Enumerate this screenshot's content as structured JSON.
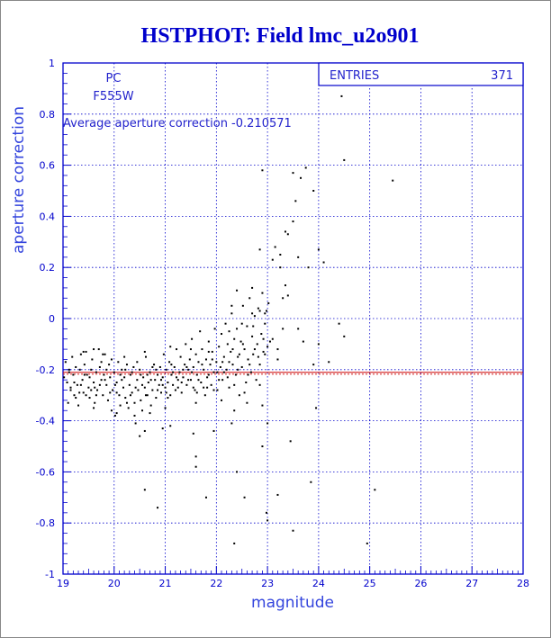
{
  "chart_data": {
    "type": "scatter",
    "title": "HSTPHOT: Field lmc_u2o901",
    "xlabel": "magnitude",
    "ylabel": "aperture correction",
    "xlim": [
      19,
      28
    ],
    "ylim": [
      -1,
      1
    ],
    "xticks": [
      "19",
      "20",
      "21",
      "22",
      "23",
      "24",
      "25",
      "26",
      "27",
      "28"
    ],
    "yticks": [
      "1",
      "0.8",
      "0.6",
      "0.4",
      "0.2",
      "0",
      "-0.2",
      "-0.4",
      "-0.6",
      "-0.8",
      "-1"
    ],
    "grid": true,
    "grid_color": "#0000cc",
    "axis_color": "#0000cc",
    "point_color": "#000000",
    "average_line": {
      "value": -0.210571,
      "color": "#cc0000"
    },
    "annotations": {
      "instrument": "PC",
      "filter": "F555W",
      "average_text": "Average aperture correction -0.210571"
    },
    "stats": {
      "label": "ENTRIES",
      "value": "371"
    },
    "points": [
      [
        19.05,
        -0.17
      ],
      [
        19.08,
        -0.25
      ],
      [
        19.1,
        -0.33
      ],
      [
        19.12,
        -0.21
      ],
      [
        19.15,
        -0.28
      ],
      [
        19.18,
        -0.15
      ],
      [
        19.2,
        -0.22
      ],
      [
        19.22,
        -0.3
      ],
      [
        19.25,
        -0.19
      ],
      [
        19.28,
        -0.26
      ],
      [
        19.3,
        -0.34
      ],
      [
        19.33,
        -0.2
      ],
      [
        19.35,
        -0.14
      ],
      [
        19.38,
        -0.24
      ],
      [
        19.4,
        -0.29
      ],
      [
        19.42,
        -0.18
      ],
      [
        19.45,
        -0.13
      ],
      [
        19.47,
        -0.22
      ],
      [
        19.5,
        -0.27
      ],
      [
        19.52,
        -0.31
      ],
      [
        19.55,
        -0.2
      ],
      [
        19.57,
        -0.16
      ],
      [
        19.6,
        -0.25
      ],
      [
        19.62,
        -0.33
      ],
      [
        19.65,
        -0.21
      ],
      [
        19.67,
        -0.28
      ],
      [
        19.7,
        -0.12
      ],
      [
        19.72,
        -0.19
      ],
      [
        19.75,
        -0.24
      ],
      [
        19.78,
        -0.3
      ],
      [
        19.8,
        -0.22
      ],
      [
        19.82,
        -0.14
      ],
      [
        19.85,
        -0.26
      ],
      [
        19.88,
        -0.32
      ],
      [
        19.9,
        -0.18
      ],
      [
        19.92,
        -0.23
      ],
      [
        19.95,
        -0.36
      ],
      [
        19.97,
        -0.28
      ],
      [
        20.0,
        -0.21
      ],
      [
        20.02,
        -0.38
      ],
      [
        20.05,
        -0.25
      ],
      [
        20.08,
        -0.17
      ],
      [
        20.1,
        -0.3
      ],
      [
        20.12,
        -0.34
      ],
      [
        20.15,
        -0.2
      ],
      [
        20.18,
        -0.27
      ],
      [
        20.2,
        -0.23
      ],
      [
        20.22,
        -0.31
      ],
      [
        20.25,
        -0.18
      ],
      [
        20.28,
        -0.35
      ],
      [
        20.3,
        -0.26
      ],
      [
        20.32,
        -0.22
      ],
      [
        20.35,
        -0.29
      ],
      [
        20.38,
        -0.19
      ],
      [
        20.4,
        -0.33
      ],
      [
        20.42,
        -0.41
      ],
      [
        20.45,
        -0.24
      ],
      [
        20.47,
        -0.28
      ],
      [
        20.5,
        -0.2
      ],
      [
        20.52,
        -0.32
      ],
      [
        20.55,
        -0.36
      ],
      [
        20.57,
        -0.23
      ],
      [
        20.6,
        -0.27
      ],
      [
        20.62,
        -0.15
      ],
      [
        20.65,
        -0.3
      ],
      [
        20.67,
        -0.25
      ],
      [
        20.7,
        -0.21
      ],
      [
        20.72,
        -0.34
      ],
      [
        20.75,
        -0.28
      ],
      [
        20.78,
        -0.18
      ],
      [
        20.8,
        -0.24
      ],
      [
        20.82,
        -0.31
      ],
      [
        20.85,
        -0.22
      ],
      [
        20.88,
        -0.26
      ],
      [
        20.9,
        -0.19
      ],
      [
        20.92,
        -0.29
      ],
      [
        20.95,
        -0.23
      ],
      [
        20.97,
        -0.14
      ],
      [
        21.0,
        -0.27
      ],
      [
        21.02,
        -0.2
      ],
      [
        21.05,
        -0.25
      ],
      [
        21.08,
        -0.17
      ],
      [
        21.1,
        -0.3
      ],
      [
        21.12,
        -0.22
      ],
      [
        21.15,
        -0.26
      ],
      [
        21.18,
        -0.19
      ],
      [
        21.2,
        -0.28
      ],
      [
        21.22,
        -0.12
      ],
      [
        21.25,
        -0.24
      ],
      [
        21.28,
        -0.21
      ],
      [
        21.3,
        -0.15
      ],
      [
        21.32,
        -0.29
      ],
      [
        21.35,
        -0.23
      ],
      [
        21.38,
        -0.18
      ],
      [
        21.4,
        -0.1
      ],
      [
        21.42,
        -0.26
      ],
      [
        21.45,
        -0.2
      ],
      [
        21.48,
        -0.16
      ],
      [
        21.5,
        -0.24
      ],
      [
        21.52,
        -0.08
      ],
      [
        21.55,
        -0.19
      ],
      [
        21.58,
        -0.28
      ],
      [
        21.6,
        -0.14
      ],
      [
        21.62,
        -0.22
      ],
      [
        21.65,
        -0.17
      ],
      [
        21.68,
        -0.05
      ],
      [
        21.7,
        -0.25
      ],
      [
        21.72,
        -0.12
      ],
      [
        21.75,
        -0.2
      ],
      [
        21.78,
        -0.3
      ],
      [
        21.8,
        -0.16
      ],
      [
        21.82,
        -0.23
      ],
      [
        21.85,
        -0.09
      ],
      [
        21.88,
        -0.18
      ],
      [
        21.9,
        -0.26
      ],
      [
        21.92,
        -0.13
      ],
      [
        21.95,
        -0.21
      ],
      [
        21.97,
        -0.04
      ],
      [
        22.0,
        -0.17
      ],
      [
        22.02,
        -0.28
      ],
      [
        22.05,
        -0.11
      ],
      [
        22.08,
        -0.19
      ],
      [
        22.1,
        -0.06
      ],
      [
        22.12,
        -0.24
      ],
      [
        22.15,
        -0.15
      ],
      [
        22.18,
        -0.02
      ],
      [
        22.2,
        -0.2
      ],
      [
        22.22,
        -0.1
      ],
      [
        22.25,
        -0.27
      ],
      [
        22.28,
        -0.13
      ],
      [
        22.3,
        0.02
      ],
      [
        22.32,
        -0.18
      ],
      [
        22.35,
        -0.08
      ],
      [
        22.38,
        -0.22
      ],
      [
        22.4,
        -0.04
      ],
      [
        22.42,
        -0.15
      ],
      [
        22.45,
        -0.3
      ],
      [
        22.48,
        -0.09
      ],
      [
        22.5,
        -0.19
      ],
      [
        22.52,
        0.05
      ],
      [
        22.55,
        -0.12
      ],
      [
        22.58,
        -0.25
      ],
      [
        22.6,
        -0.03
      ],
      [
        22.62,
        -0.16
      ],
      [
        22.65,
        0.08
      ],
      [
        22.68,
        -0.21
      ],
      [
        22.7,
        -0.07
      ],
      [
        22.72,
        -0.14
      ],
      [
        22.75,
        0.01
      ],
      [
        22.78,
        -0.24
      ],
      [
        22.8,
        -0.1
      ],
      [
        22.82,
        0.04
      ],
      [
        22.85,
        -0.18
      ],
      [
        22.88,
        -0.06
      ],
      [
        22.9,
        0.1
      ],
      [
        22.92,
        -0.13
      ],
      [
        22.95,
        -0.02
      ],
      [
        22.98,
        0.03
      ],
      [
        23.0,
        -0.11
      ],
      [
        23.02,
        0.06
      ],
      [
        19.15,
        -0.27
      ],
      [
        19.25,
        -0.31
      ],
      [
        19.35,
        -0.26
      ],
      [
        19.45,
        -0.3
      ],
      [
        19.55,
        -0.28
      ],
      [
        19.65,
        -0.3
      ],
      [
        19.75,
        -0.17
      ],
      [
        19.85,
        -0.2
      ],
      [
        19.95,
        -0.16
      ],
      [
        20.05,
        -0.29
      ],
      [
        20.15,
        -0.24
      ],
      [
        20.25,
        -0.33
      ],
      [
        20.35,
        -0.21
      ],
      [
        20.45,
        -0.17
      ],
      [
        20.55,
        -0.26
      ],
      [
        20.65,
        -0.22
      ],
      [
        20.75,
        -0.19
      ],
      [
        20.85,
        -0.28
      ],
      [
        20.95,
        -0.26
      ],
      [
        21.05,
        -0.31
      ],
      [
        21.15,
        -0.21
      ],
      [
        21.25,
        -0.27
      ],
      [
        21.35,
        -0.2
      ],
      [
        21.45,
        -0.24
      ],
      [
        21.55,
        -0.27
      ],
      [
        21.65,
        -0.24
      ],
      [
        21.75,
        -0.27
      ],
      [
        21.85,
        -0.22
      ],
      [
        21.95,
        -0.28
      ],
      [
        22.05,
        -0.24
      ],
      [
        22.15,
        -0.21
      ],
      [
        22.25,
        -0.17
      ],
      [
        22.35,
        -0.26
      ],
      [
        22.45,
        -0.14
      ],
      [
        22.55,
        -0.29
      ],
      [
        22.65,
        -0.18
      ],
      [
        22.75,
        -0.12
      ],
      [
        22.85,
        -0.26
      ],
      [
        22.95,
        -0.14
      ],
      [
        19.02,
        -0.23
      ],
      [
        19.12,
        -0.2
      ],
      [
        19.22,
        -0.25
      ],
      [
        19.32,
        -0.29
      ],
      [
        19.42,
        -0.22
      ],
      [
        19.52,
        -0.23
      ],
      [
        19.62,
        -0.27
      ],
      [
        19.72,
        -0.26
      ],
      [
        19.82,
        -0.24
      ],
      [
        19.92,
        -0.29
      ],
      [
        20.02,
        -0.26
      ],
      [
        20.12,
        -0.22
      ],
      [
        20.22,
        -0.2
      ],
      [
        20.32,
        -0.3
      ],
      [
        20.42,
        -0.27
      ],
      [
        20.52,
        -0.22
      ],
      [
        20.62,
        -0.3
      ],
      [
        20.72,
        -0.24
      ],
      [
        20.82,
        -0.2
      ],
      [
        20.92,
        -0.24
      ],
      [
        21.02,
        -0.29
      ],
      [
        21.12,
        -0.18
      ],
      [
        21.22,
        -0.23
      ],
      [
        21.32,
        -0.25
      ],
      [
        21.42,
        -0.19
      ],
      [
        21.52,
        -0.21
      ],
      [
        21.62,
        -0.29
      ],
      [
        21.72,
        -0.18
      ],
      [
        21.82,
        -0.27
      ],
      [
        21.92,
        -0.16
      ],
      [
        22.02,
        -0.21
      ],
      [
        22.12,
        -0.17
      ],
      [
        22.22,
        -0.23
      ],
      [
        22.32,
        -0.12
      ],
      [
        22.42,
        -0.2
      ],
      [
        22.52,
        -0.1
      ],
      [
        22.62,
        -0.22
      ],
      [
        22.72,
        -0.03
      ],
      [
        22.82,
        -0.15
      ],
      [
        22.92,
        -0.08
      ],
      [
        19.4,
        -0.13
      ],
      [
        19.6,
        -0.12
      ],
      [
        19.78,
        -0.14
      ],
      [
        20.2,
        -0.15
      ],
      [
        20.6,
        -0.13
      ],
      [
        21.1,
        -0.11
      ],
      [
        21.5,
        -0.12
      ],
      [
        21.85,
        -0.13
      ],
      [
        22.25,
        -0.05
      ],
      [
        22.5,
        -0.02
      ],
      [
        22.7,
        0.02
      ],
      [
        22.95,
        0.02
      ],
      [
        19.6,
        -0.35
      ],
      [
        20.05,
        -0.37
      ],
      [
        20.4,
        -0.38
      ],
      [
        20.7,
        -0.37
      ],
      [
        21.0,
        -0.35
      ],
      [
        21.6,
        -0.33
      ],
      [
        22.1,
        -0.32
      ],
      [
        22.35,
        -0.36
      ],
      [
        22.6,
        -0.33
      ],
      [
        22.9,
        -0.34
      ],
      [
        23.1,
        -0.08
      ],
      [
        23.2,
        -0.12
      ],
      [
        20.5,
        -0.46
      ],
      [
        20.6,
        -0.44
      ],
      [
        20.95,
        -0.43
      ],
      [
        21.1,
        -0.42
      ],
      [
        21.55,
        -0.45
      ],
      [
        21.95,
        -0.44
      ],
      [
        22.3,
        -0.41
      ],
      [
        22.9,
        -0.5
      ],
      [
        21.6,
        -0.54
      ],
      [
        21.6,
        -0.58
      ],
      [
        22.4,
        -0.6
      ],
      [
        23.45,
        -0.48
      ],
      [
        23.0,
        -0.41
      ],
      [
        23.05,
        -0.09
      ],
      [
        20.6,
        -0.67
      ],
      [
        21.8,
        -0.7
      ],
      [
        22.55,
        -0.7
      ],
      [
        23.2,
        -0.69
      ],
      [
        23.85,
        -0.64
      ],
      [
        20.85,
        -0.74
      ],
      [
        22.98,
        -0.76
      ],
      [
        23.0,
        -0.79
      ],
      [
        22.35,
        -0.88
      ],
      [
        23.5,
        -0.83
      ],
      [
        24.95,
        -0.88
      ],
      [
        25.1,
        -0.67
      ],
      [
        23.25,
        0.2
      ],
      [
        23.3,
        0.08
      ],
      [
        23.4,
        0.09
      ],
      [
        23.25,
        0.25
      ],
      [
        23.15,
        0.28
      ],
      [
        23.35,
        0.34
      ],
      [
        23.4,
        0.33
      ],
      [
        23.5,
        0.38
      ],
      [
        23.55,
        0.46
      ],
      [
        23.65,
        0.55
      ],
      [
        23.75,
        0.59
      ],
      [
        23.9,
        0.5
      ],
      [
        23.5,
        0.57
      ],
      [
        22.9,
        0.58
      ],
      [
        22.85,
        0.27
      ],
      [
        23.1,
        0.23
      ],
      [
        23.6,
        0.24
      ],
      [
        23.8,
        0.2
      ],
      [
        24.0,
        0.27
      ],
      [
        24.1,
        0.22
      ],
      [
        23.35,
        0.13
      ],
      [
        22.7,
        0.12
      ],
      [
        23.3,
        -0.04
      ],
      [
        23.7,
        -0.09
      ],
      [
        23.6,
        -0.04
      ],
      [
        24.0,
        -0.1
      ],
      [
        24.4,
        -0.02
      ],
      [
        24.5,
        -0.07
      ],
      [
        23.9,
        -0.18
      ],
      [
        24.2,
        -0.17
      ],
      [
        23.95,
        -0.35
      ],
      [
        23.2,
        -0.16
      ],
      [
        24.45,
        0.87
      ],
      [
        24.5,
        0.62
      ],
      [
        25.45,
        0.54
      ],
      [
        22.4,
        0.11
      ],
      [
        22.3,
        0.05
      ],
      [
        22.85,
        0.03
      ]
    ]
  }
}
